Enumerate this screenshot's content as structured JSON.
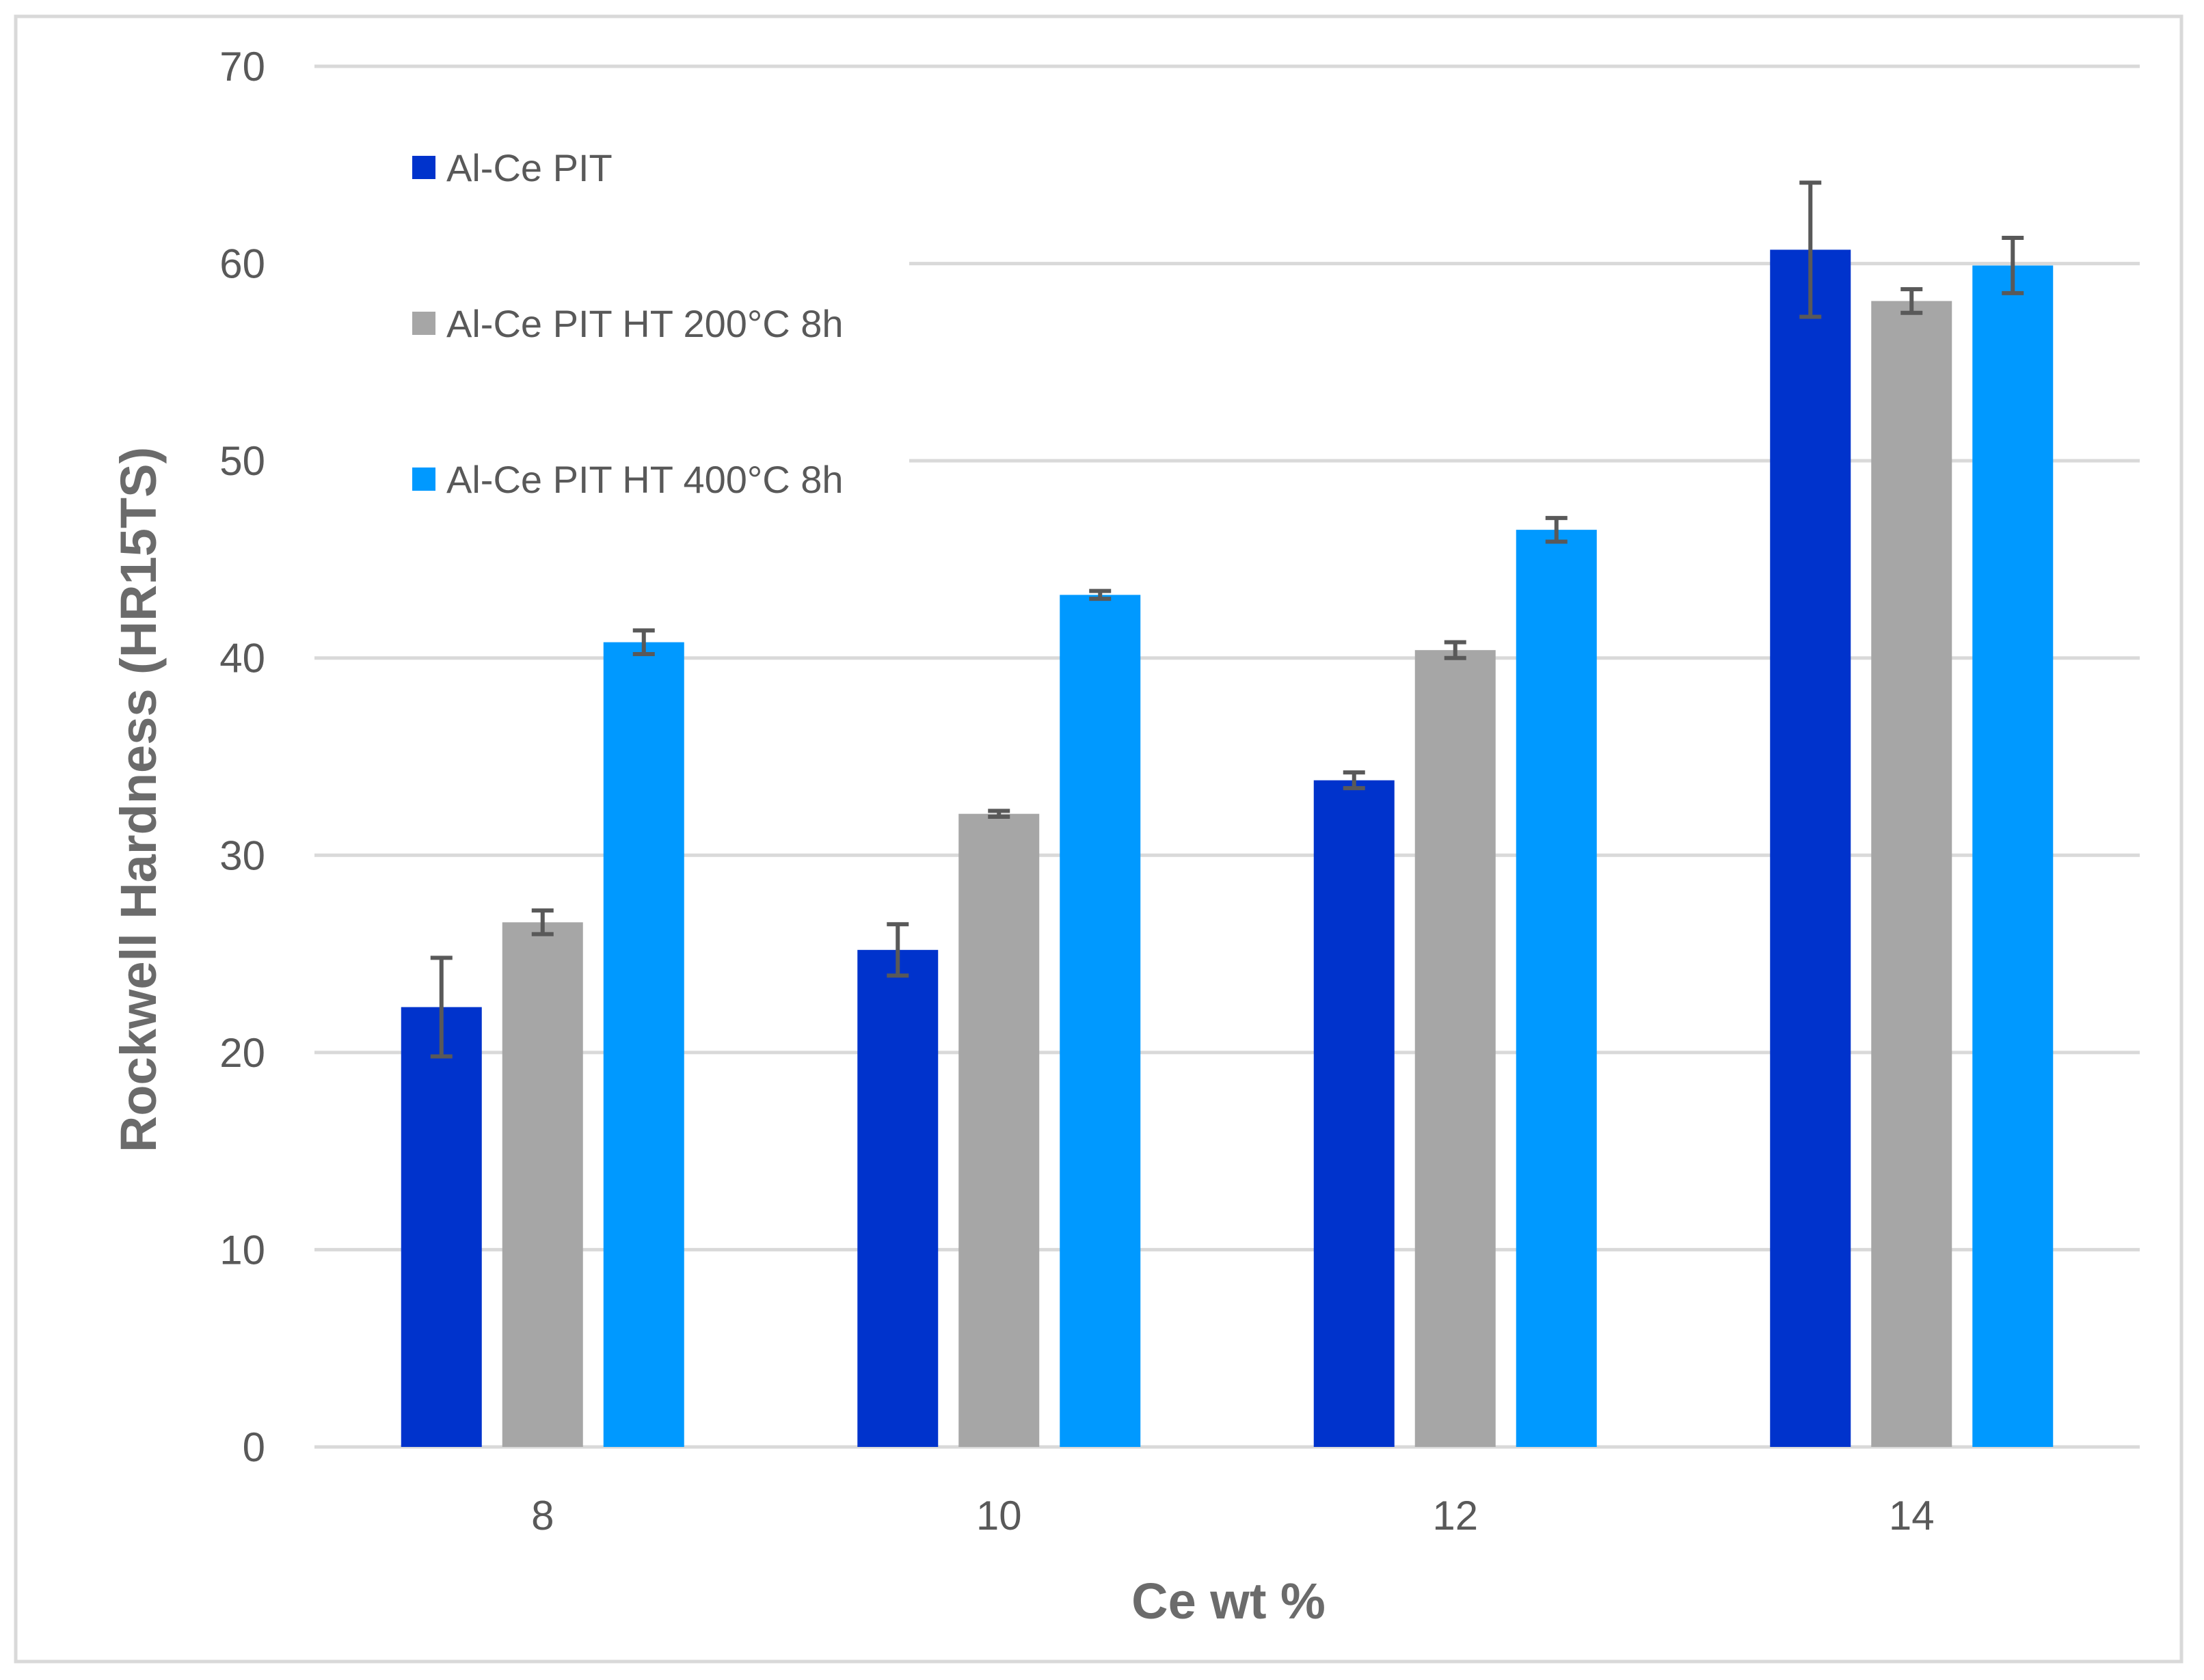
{
  "chart_data": {
    "type": "bar",
    "title": "",
    "xlabel": "Ce wt %",
    "ylabel": "Rockwell Hardness (HR15TS)",
    "categories": [
      "8",
      "10",
      "12",
      "14"
    ],
    "ylim": [
      0,
      70
    ],
    "yticks": [
      0,
      10,
      20,
      30,
      40,
      50,
      60,
      70
    ],
    "grid": true,
    "legend_position": "top-left",
    "series": [
      {
        "name": "Al-Ce PIT",
        "color": "#0033CC",
        "values": [
          22.3,
          25.2,
          33.8,
          60.7
        ],
        "errors": [
          2.5,
          1.3,
          0.4,
          3.4
        ]
      },
      {
        "name": "Al-Ce PIT HT 200°C 8h",
        "color": "#A6A6A6",
        "values": [
          26.6,
          32.1,
          40.4,
          58.1
        ],
        "errors": [
          0.6,
          0.15,
          0.4,
          0.6
        ]
      },
      {
        "name": "Al-Ce PIT HT 400°C 8h",
        "color": "#0099FF",
        "values": [
          40.8,
          43.2,
          46.5,
          59.9
        ],
        "errors": [
          0.6,
          0.2,
          0.6,
          1.4
        ]
      }
    ],
    "error_bar_color": "#595959",
    "gridline_color": "#D9D9D9",
    "border_color": "#D9D9D9"
  }
}
